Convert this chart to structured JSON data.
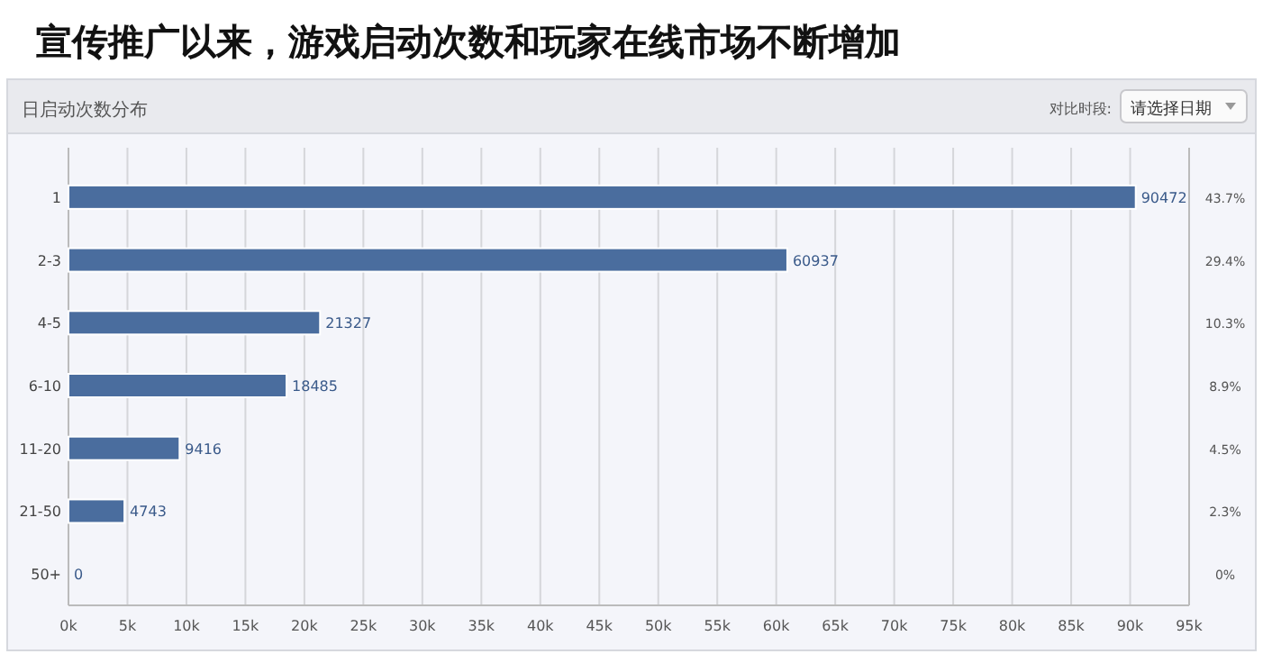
{
  "chart_data": {
    "type": "bar",
    "orientation": "horizontal",
    "title": "宣传推广以来，游戏启动次数和玩家在线市场不断增加",
    "subtitle": "日启动次数分布",
    "categories": [
      "1",
      "2-3",
      "4-5",
      "6-10",
      "11-20",
      "21-50",
      "50+"
    ],
    "series": [
      {
        "color": "#4a6d9e",
        "values": [
          90472,
          60937,
          21327,
          18485,
          9416,
          4743,
          0
        ]
      }
    ],
    "data_labels": true,
    "xlim": [
      0,
      95000
    ],
    "xticks": [
      {
        "value": 0,
        "label": "0k"
      },
      {
        "value": 5000,
        "label": "5k"
      },
      {
        "value": 10000,
        "label": "10k"
      },
      {
        "value": 15000,
        "label": "15k"
      },
      {
        "value": 20000,
        "label": "20k"
      },
      {
        "value": 25000,
        "label": "25k"
      },
      {
        "value": 30000,
        "label": "30k"
      },
      {
        "value": 35000,
        "label": "35k"
      },
      {
        "value": 40000,
        "label": "40k"
      },
      {
        "value": 45000,
        "label": "45k"
      },
      {
        "value": 50000,
        "label": "50k"
      },
      {
        "value": 55000,
        "label": "55k"
      },
      {
        "value": 60000,
        "label": "60k"
      },
      {
        "value": 65000,
        "label": "65k"
      },
      {
        "value": 70000,
        "label": "70k"
      },
      {
        "value": 75000,
        "label": "75k"
      },
      {
        "value": 80000,
        "label": "80k"
      },
      {
        "value": 85000,
        "label": "85k"
      },
      {
        "value": 90000,
        "label": "90k"
      },
      {
        "value": 95000,
        "label": "95k"
      }
    ],
    "grid": "x",
    "annotations": [
      "对比时段:",
      "请选择日期",
      "43.7%",
      "29.4%",
      "10.3%",
      "8.9%",
      "4.5%",
      "2.3%",
      "0%"
    ]
  }
}
